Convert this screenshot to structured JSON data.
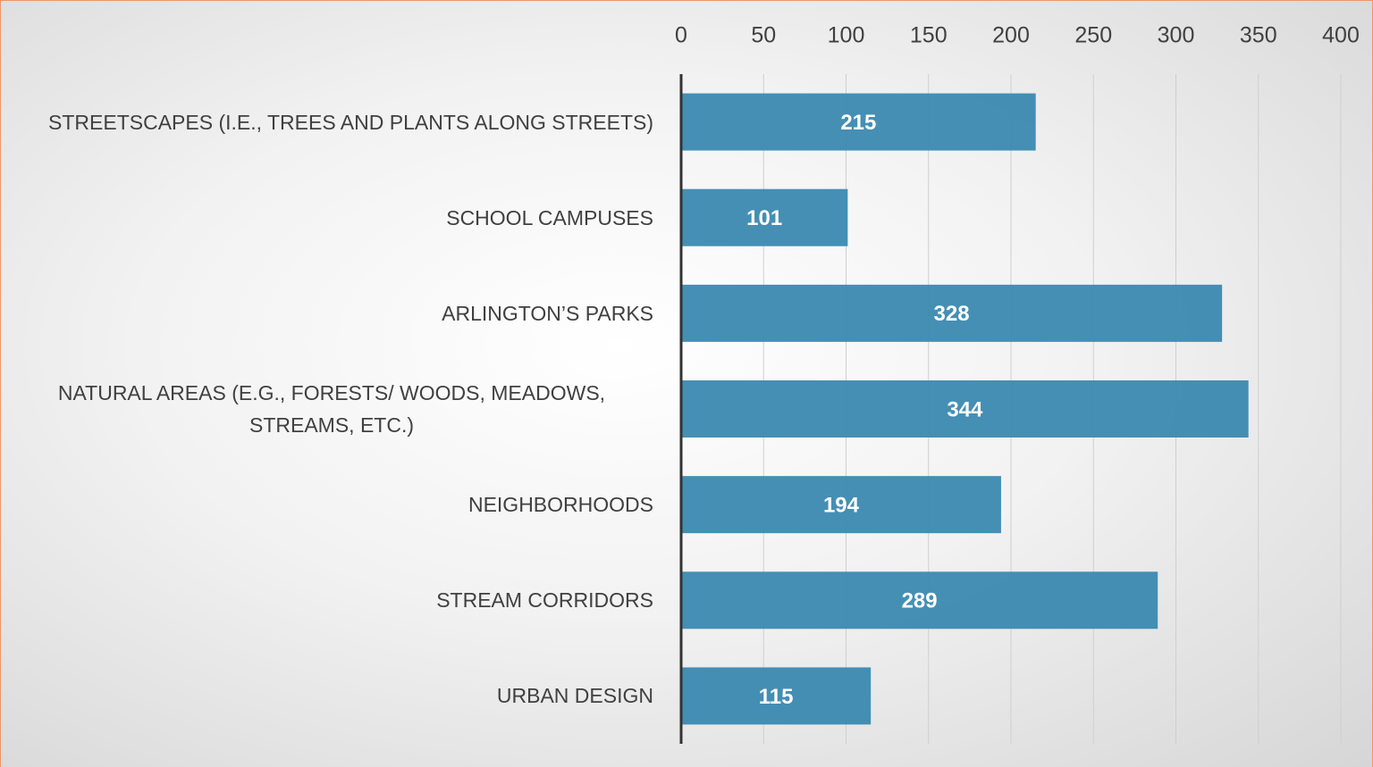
{
  "chart_data": {
    "type": "bar",
    "orientation": "horizontal",
    "categories": [
      "STREETSCAPES (I.E., TREES AND PLANTS ALONG STREETS)",
      "SCHOOL CAMPUSES",
      "ARLINGTON’S PARKS",
      "NATURAL AREAS (E.G., FORESTS/ WOODS, MEADOWS, STREAMS, ETC.)",
      "NEIGHBORHOODS",
      "STREAM CORRIDORS",
      "URBAN DESIGN"
    ],
    "values": [
      215,
      101,
      328,
      344,
      194,
      289,
      115
    ],
    "color": "#3b89b0",
    "xlim": [
      0,
      400
    ],
    "xticks": [
      0,
      50,
      100,
      150,
      200,
      250,
      300,
      350,
      400
    ],
    "grid": true
  }
}
